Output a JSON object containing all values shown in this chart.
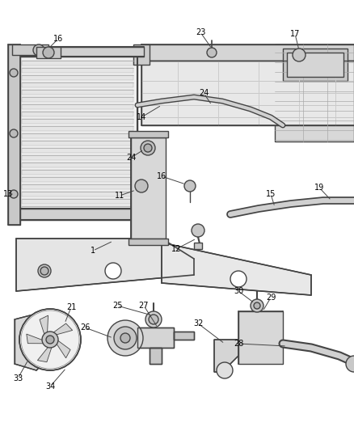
{
  "bg_color": "#ffffff",
  "line_color": "#444444",
  "label_color": "#000000",
  "lw": 1.0,
  "fs": 7.0,
  "figsize": [
    4.38,
    5.33
  ],
  "dpi": 100
}
